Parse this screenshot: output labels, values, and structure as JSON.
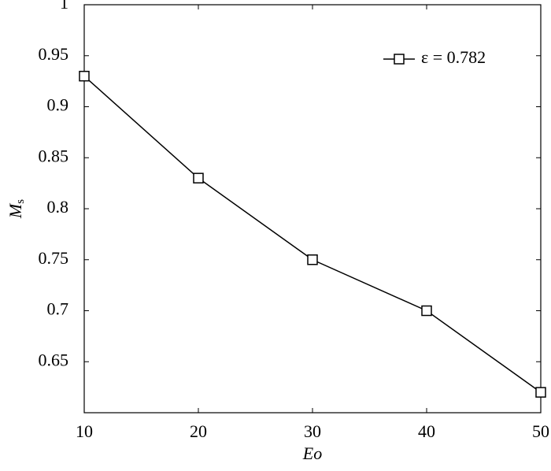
{
  "chart_data": {
    "type": "line",
    "xlabel": "Eo",
    "ylabel": {
      "text": "M",
      "subscript": "s"
    },
    "x": [
      10,
      20,
      30,
      40,
      50
    ],
    "series": [
      {
        "name": "ε = 0.782",
        "color": "#000000",
        "marker": "square",
        "values": [
          0.93,
          0.83,
          0.75,
          0.7,
          0.62
        ]
      }
    ],
    "xlim": [
      10,
      50
    ],
    "xticks": [
      10,
      20,
      30,
      40,
      50
    ],
    "ylim": [
      0.6,
      1
    ],
    "yticks": [
      0.65,
      0.7,
      0.75,
      0.8,
      0.85,
      0.9,
      0.95,
      1
    ],
    "legend": "upper-right",
    "grid": false
  }
}
